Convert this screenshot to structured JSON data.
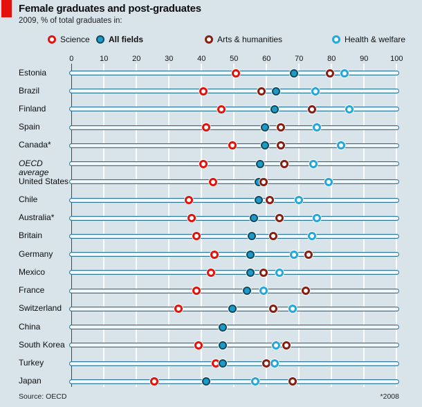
{
  "header": {
    "title": "Female graduates and post-graduates",
    "subtitle": "2009, % of total graduates in:"
  },
  "legend": [
    {
      "label": "Science",
      "style": "open",
      "color": "#e3120b",
      "bold": false
    },
    {
      "label": "All fields",
      "style": "filled",
      "color": "#1f9ac8",
      "bold": true
    },
    {
      "label": "Arts & humanities",
      "style": "open",
      "color": "#871e10",
      "bold": false
    },
    {
      "label": "Health & welfare",
      "style": "open",
      "color": "#23a7dd",
      "bold": false
    }
  ],
  "colors": {
    "background": "#d9e4ea",
    "accent_red": "#e3120b",
    "science": "#e3120b",
    "all_fields_fill": "#1f9ac8",
    "all_fields_stroke": "#0e4a5e",
    "arts_humanities": "#871e10",
    "health_welfare": "#23a7dd"
  },
  "chart_data": {
    "type": "scatter",
    "title": "Female graduates and post-graduates",
    "subtitle": "2009, % of total graduates in:",
    "xlabel": "% of total graduates",
    "ylabel": "",
    "xlim": [
      0,
      100
    ],
    "axis_ticks": [
      0,
      10,
      20,
      30,
      40,
      50,
      60,
      70,
      80,
      90,
      100
    ],
    "grid": true,
    "legend_position": "top",
    "categories": [
      "Estonia",
      "Brazil",
      "Finland",
      "Spain",
      "Canada*",
      "OECD average",
      "United States",
      "Chile",
      "Australia*",
      "Britain",
      "Germany",
      "Mexico",
      "France",
      "Switzerland",
      "China",
      "South Korea",
      "Turkey",
      "Japan"
    ],
    "series": [
      {
        "name": "Science",
        "style": "open",
        "color": "#e3120b",
        "values": [
          50.5,
          40.5,
          46,
          41.5,
          49.5,
          40.5,
          43.5,
          36,
          37,
          38.5,
          44,
          43,
          38.5,
          33,
          null,
          39,
          44.5,
          25.5
        ]
      },
      {
        "name": "All fields",
        "style": "filled",
        "color": "#1f9ac8",
        "values": [
          68.5,
          63,
          62.5,
          59.5,
          59.5,
          58,
          57.5,
          57.5,
          56,
          55.5,
          55,
          55,
          54,
          49.5,
          46.5,
          46.5,
          46.5,
          41.5
        ]
      },
      {
        "name": "Arts & humanities",
        "style": "open",
        "color": "#871e10",
        "values": [
          79.5,
          58.5,
          74,
          64.5,
          64.5,
          65.5,
          59,
          61,
          64,
          62,
          73,
          59,
          72,
          62,
          null,
          66,
          60,
          68
        ]
      },
      {
        "name": "Health & welfare",
        "style": "open",
        "color": "#23a7dd",
        "values": [
          84,
          75,
          85.5,
          75.5,
          83,
          74.5,
          79,
          70,
          75.5,
          74,
          68.5,
          64,
          59,
          68,
          null,
          63,
          62.5,
          56.5
        ]
      }
    ]
  },
  "footer": {
    "source": "Source: OECD",
    "note": "*2008"
  }
}
